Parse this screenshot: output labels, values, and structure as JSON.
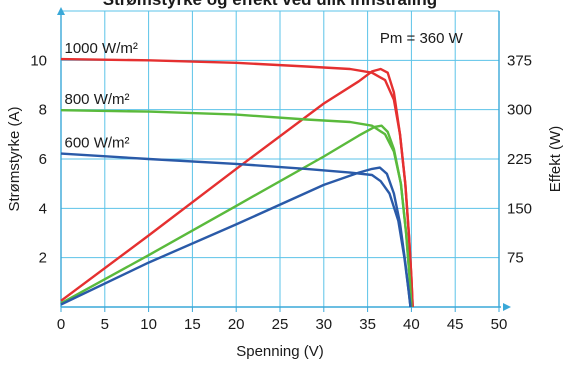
{
  "title_fragment": "Strømstyrke og effekt ved ulik innstråling",
  "chart_data": {
    "type": "line",
    "xlabel": "Spenning (V)",
    "ylabel_left": "Strømstyrke (A)",
    "ylabel_right": "Effekt (W)",
    "xlim": [
      0,
      50
    ],
    "ylim_left": [
      0,
      12
    ],
    "ylim_right": [
      0,
      450
    ],
    "x_ticks": [
      0,
      5,
      10,
      15,
      20,
      25,
      30,
      35,
      40,
      45,
      50
    ],
    "y_left_ticks": [
      2,
      4,
      6,
      8,
      10
    ],
    "y_right_ticks": [
      75,
      150,
      225,
      300,
      375
    ],
    "grid": true,
    "annotation": "Pm = 360 W",
    "series": [
      {
        "name": "1000 W/m²",
        "color": "#e53030",
        "current": [
          [
            0,
            10.05
          ],
          [
            10,
            10.0
          ],
          [
            20,
            9.9
          ],
          [
            28,
            9.75
          ],
          [
            33,
            9.65
          ],
          [
            35.5,
            9.5
          ],
          [
            37,
            9.2
          ],
          [
            38,
            8.4
          ],
          [
            38.7,
            7.0
          ],
          [
            39.3,
            5.0
          ],
          [
            39.7,
            3.0
          ],
          [
            40.0,
            1.2
          ],
          [
            40.15,
            0
          ]
        ],
        "power": [
          [
            0,
            0.25
          ],
          [
            10,
            2.9
          ],
          [
            20,
            5.6
          ],
          [
            30,
            8.25
          ],
          [
            34,
            9.15
          ],
          [
            35.5,
            9.55
          ],
          [
            36.5,
            9.65
          ],
          [
            37.3,
            9.5
          ],
          [
            38,
            8.7
          ],
          [
            38.7,
            7.0
          ],
          [
            39.3,
            5.0
          ],
          [
            39.7,
            3.0
          ],
          [
            40.0,
            1.2
          ],
          [
            40.15,
            0
          ]
        ]
      },
      {
        "name": "800 W/m²",
        "color": "#5aba3c",
        "current": [
          [
            0,
            7.98
          ],
          [
            10,
            7.92
          ],
          [
            20,
            7.8
          ],
          [
            28,
            7.6
          ],
          [
            33,
            7.5
          ],
          [
            35.5,
            7.35
          ],
          [
            37,
            7.0
          ],
          [
            38,
            6.3
          ],
          [
            38.8,
            5.0
          ],
          [
            39.4,
            3.0
          ],
          [
            39.8,
            1.2
          ],
          [
            40.0,
            0
          ]
        ],
        "power": [
          [
            0,
            0.15
          ],
          [
            10,
            2.1
          ],
          [
            20,
            4.1
          ],
          [
            30,
            6.1
          ],
          [
            34,
            6.95
          ],
          [
            35.8,
            7.3
          ],
          [
            36.6,
            7.35
          ],
          [
            37.3,
            7.1
          ],
          [
            38,
            6.4
          ],
          [
            38.8,
            5.0
          ],
          [
            39.4,
            3.0
          ],
          [
            39.8,
            1.2
          ],
          [
            40.0,
            0
          ]
        ]
      },
      {
        "name": "600 W/m²",
        "color": "#2a5aa8",
        "current": [
          [
            0,
            6.22
          ],
          [
            10,
            6.0
          ],
          [
            20,
            5.8
          ],
          [
            28,
            5.6
          ],
          [
            33,
            5.45
          ],
          [
            35.5,
            5.35
          ],
          [
            36.5,
            5.1
          ],
          [
            37.5,
            4.6
          ],
          [
            38.5,
            3.5
          ],
          [
            39.2,
            2.0
          ],
          [
            39.7,
            0.6
          ],
          [
            39.9,
            0
          ]
        ],
        "power": [
          [
            0,
            0.1
          ],
          [
            10,
            1.8
          ],
          [
            20,
            3.35
          ],
          [
            30,
            4.95
          ],
          [
            34,
            5.45
          ],
          [
            35.5,
            5.6
          ],
          [
            36.4,
            5.65
          ],
          [
            37.2,
            5.4
          ],
          [
            38,
            4.6
          ],
          [
            38.7,
            3.4
          ],
          [
            39.3,
            1.8
          ],
          [
            39.7,
            0.6
          ],
          [
            39.9,
            0
          ]
        ]
      }
    ]
  }
}
